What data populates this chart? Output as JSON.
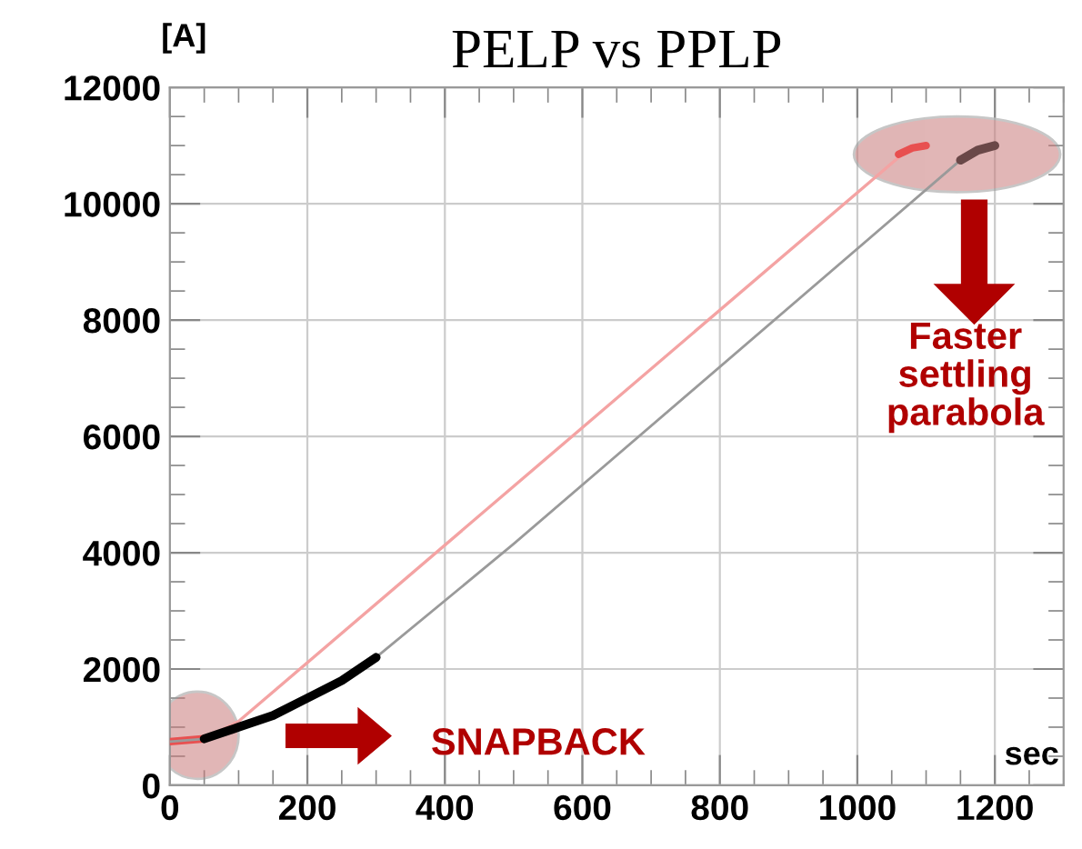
{
  "chart_data": {
    "type": "line",
    "title": "PELP vs PPLP",
    "xlabel": "sec",
    "ylabel": "[A]",
    "series": [
      {
        "color": "#f4a3a3",
        "x": [
          0,
          50,
          100,
          1080
        ],
        "values": [
          750,
          800,
          1100,
          11000
        ]
      },
      {
        "color": "#e85050",
        "x": [
          0,
          50
        ],
        "values": [
          750,
          800
        ]
      },
      {
        "color": "#e85050",
        "x": [
          1060,
          1080,
          1100
        ],
        "values": [
          10850,
          10960,
          11000
        ]
      },
      {
        "color": "#9a9a9a",
        "x": [
          0,
          50,
          100,
          200,
          300,
          500,
          1150,
          1200
        ],
        "values": [
          750,
          800,
          1000,
          1500,
          2200,
          4150,
          10750,
          11000
        ]
      },
      {
        "color": "#000000",
        "x": [
          50,
          100,
          150,
          200,
          250,
          300
        ],
        "values": [
          800,
          1000,
          1200,
          1500,
          1800,
          2200
        ]
      },
      {
        "color": "#6a4848",
        "x": [
          1150,
          1175,
          1200
        ],
        "values": [
          10750,
          10920,
          11000
        ]
      }
    ],
    "xlim": [
      0,
      1300
    ],
    "ylim": [
      0,
      12000
    ],
    "xticks": [
      0,
      200,
      400,
      600,
      800,
      1000,
      1200
    ],
    "yticks": [
      0,
      2000,
      4000,
      6000,
      8000,
      10000,
      12000
    ],
    "grid": true,
    "marker": "none",
    "line_style": "solid",
    "annotations": [
      "SNAPBACK",
      "Faster settling parabola"
    ]
  }
}
